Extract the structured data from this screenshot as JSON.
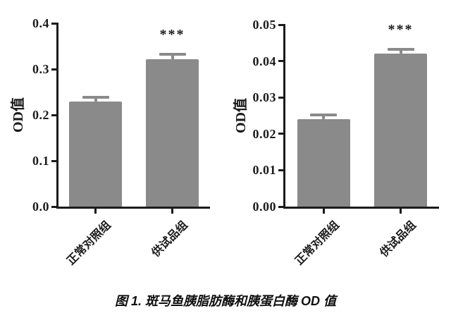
{
  "figure": {
    "caption": "图 1. 斑马鱼胰脂肪酶和胰蛋白酶 OD 值"
  },
  "colors": {
    "bar": "#8a8a8a",
    "error_bar": "#8a8a8a",
    "axis": "#1b1b1b",
    "text": "#1b1b1b",
    "background": "#ffffff"
  },
  "chart_data": [
    {
      "type": "bar",
      "title": "",
      "ylabel": "OD值",
      "xlabel": "",
      "categories": [
        "正常对照组",
        "供试品组"
      ],
      "values": [
        0.23,
        0.322
      ],
      "errors": [
        0.006,
        0.007
      ],
      "annotations": [
        "",
        "***"
      ],
      "ylim": [
        0.0,
        0.4
      ],
      "yticks": [
        0.0,
        0.1,
        0.2,
        0.3,
        0.4
      ],
      "ytick_labels": [
        "0.0",
        "0.1",
        "0.2",
        "0.3",
        "0.4"
      ],
      "grid": false,
      "legend": null
    },
    {
      "type": "bar",
      "title": "",
      "ylabel": "OD值",
      "xlabel": "",
      "categories": [
        "正常对照组",
        "供试品组"
      ],
      "values": [
        0.024,
        0.042
      ],
      "errors": [
        0.0006,
        0.0008
      ],
      "annotations": [
        "",
        "***"
      ],
      "ylim": [
        0.0,
        0.05
      ],
      "yticks": [
        0.0,
        0.01,
        0.02,
        0.03,
        0.04,
        0.05
      ],
      "ytick_labels": [
        "0.00",
        "0.01",
        "0.02",
        "0.03",
        "0.04",
        "0.05"
      ],
      "grid": false,
      "legend": null
    }
  ]
}
